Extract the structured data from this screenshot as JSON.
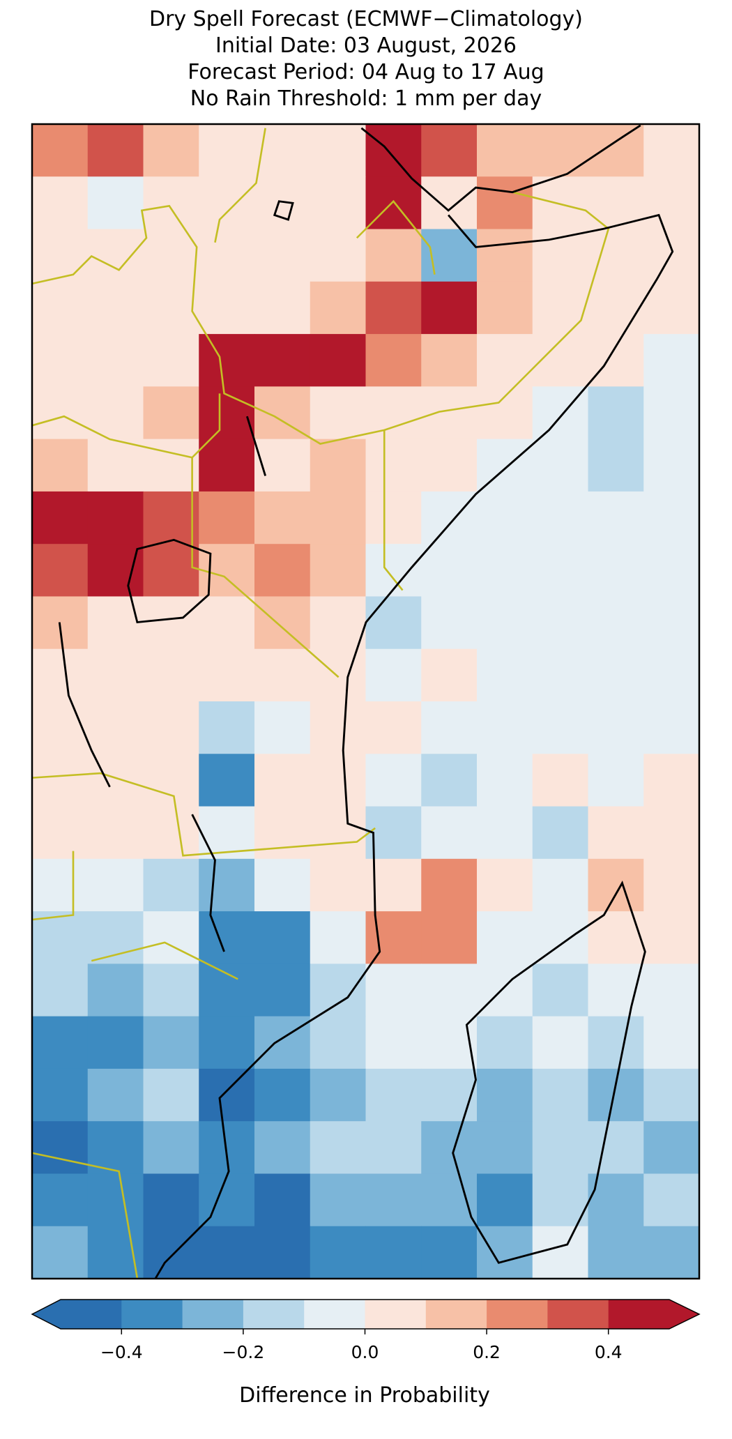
{
  "chart_data": {
    "type": "grid-map",
    "title": [
      "Dry Spell Forecast (ECMWF−Climatology)",
      "Initial Date: 03 August, 2026",
      "Forecast Period: 04 Aug to 17 Aug",
      "No Rain Threshold: 1 mm per day"
    ],
    "colorbar_label": "Difference in Probability",
    "levels": [
      -0.5,
      -0.4,
      -0.3,
      -0.2,
      -0.1,
      0,
      0.1,
      0.2,
      0.3,
      0.4,
      0.5
    ],
    "colors": [
      "#2a6fb0",
      "#3d8bc1",
      "#7cb5d8",
      "#b9d8ea",
      "#e6eff4",
      "#fbe5db",
      "#f7c1a7",
      "#e98b6f",
      "#d1534b",
      "#b2182b"
    ],
    "under_color": "#2a6fb0",
    "over_color": "#b2182b",
    "cticks": [
      {
        "value": -0.4,
        "label": "−0.4"
      },
      {
        "value": -0.2,
        "label": "−0.2"
      },
      {
        "value": 0,
        "label": "0.0"
      },
      0.2,
      0.4
    ],
    "grid": [
      [
        0.25,
        0.35,
        0.15,
        0.05,
        0.05,
        0.05,
        0.45,
        0.35,
        0.15,
        0.15,
        0.15,
        0.05
      ],
      [
        0.05,
        -0.05,
        0.05,
        0.05,
        0.05,
        0.05,
        0.45,
        0.05,
        0.25,
        0.05,
        0.05,
        0.05
      ],
      [
        0.05,
        0.05,
        0.05,
        0.05,
        0.05,
        0.05,
        0.15,
        -0.25,
        0.15,
        0.05,
        0.05,
        0.05
      ],
      [
        0.05,
        0.05,
        0.05,
        0.05,
        0.05,
        0.15,
        0.35,
        0.45,
        0.15,
        0.05,
        0.05,
        0.05
      ],
      [
        0.05,
        0.05,
        0.05,
        0.45,
        0.45,
        0.45,
        0.25,
        0.15,
        0.05,
        0.05,
        0.05,
        -0.05
      ],
      [
        0.05,
        0.05,
        0.15,
        0.45,
        0.15,
        0.05,
        0.05,
        0.05,
        0.05,
        -0.05,
        -0.15,
        -0.05
      ],
      [
        0.15,
        0.05,
        0.05,
        0.45,
        0.05,
        0.15,
        0.05,
        0.05,
        -0.05,
        -0.05,
        -0.15,
        -0.05
      ],
      [
        0.45,
        0.45,
        0.35,
        0.25,
        0.15,
        0.15,
        0.05,
        -0.05,
        -0.05,
        -0.05,
        -0.05,
        -0.05
      ],
      [
        0.35,
        0.45,
        0.35,
        0.15,
        0.25,
        0.15,
        -0.05,
        -0.05,
        -0.05,
        -0.05,
        -0.05,
        -0.05
      ],
      [
        0.15,
        0.05,
        0.05,
        0.05,
        0.15,
        0.05,
        -0.15,
        -0.05,
        -0.05,
        -0.05,
        -0.05,
        -0.05
      ],
      [
        0.05,
        0.05,
        0.05,
        0.05,
        0.05,
        0.05,
        -0.05,
        0.05,
        -0.05,
        -0.05,
        -0.05,
        -0.05
      ],
      [
        0.05,
        0.05,
        0.05,
        -0.15,
        -0.05,
        0.05,
        0.05,
        -0.05,
        -0.05,
        -0.05,
        -0.05,
        -0.05
      ],
      [
        0.05,
        0.05,
        0.05,
        -0.35,
        0.05,
        0.05,
        -0.05,
        -0.15,
        -0.05,
        0.05,
        -0.05,
        0.05
      ],
      [
        0.05,
        0.05,
        0.05,
        -0.05,
        0.05,
        0.05,
        -0.15,
        -0.05,
        -0.05,
        -0.15,
        0.05,
        0.05
      ],
      [
        -0.05,
        -0.05,
        -0.15,
        -0.25,
        -0.05,
        0.05,
        0.05,
        0.25,
        0.05,
        -0.05,
        0.15,
        0.05
      ],
      [
        -0.15,
        -0.15,
        -0.05,
        -0.35,
        -0.35,
        -0.05,
        0.25,
        0.25,
        -0.05,
        -0.05,
        0.05,
        0.05
      ],
      [
        -0.15,
        -0.25,
        -0.15,
        -0.35,
        -0.35,
        -0.15,
        -0.05,
        -0.05,
        -0.05,
        -0.15,
        -0.05,
        -0.05
      ],
      [
        -0.35,
        -0.35,
        -0.25,
        -0.35,
        -0.25,
        -0.15,
        -0.05,
        -0.05,
        -0.15,
        -0.05,
        -0.15,
        -0.05
      ],
      [
        -0.35,
        -0.25,
        -0.15,
        -0.45,
        -0.35,
        -0.25,
        -0.15,
        -0.15,
        -0.25,
        -0.15,
        -0.25,
        -0.15
      ],
      [
        -0.45,
        -0.35,
        -0.25,
        -0.35,
        -0.25,
        -0.15,
        -0.15,
        -0.25,
        -0.25,
        -0.15,
        -0.15,
        -0.25
      ],
      [
        -0.35,
        -0.35,
        -0.45,
        -0.35,
        -0.45,
        -0.25,
        -0.25,
        -0.25,
        -0.35,
        -0.15,
        -0.25,
        -0.15
      ],
      [
        -0.25,
        -0.35,
        -0.45,
        -0.45,
        -0.45,
        -0.35,
        -0.35,
        -0.35,
        -0.25,
        -0.05,
        -0.25,
        -0.25
      ]
    ]
  }
}
